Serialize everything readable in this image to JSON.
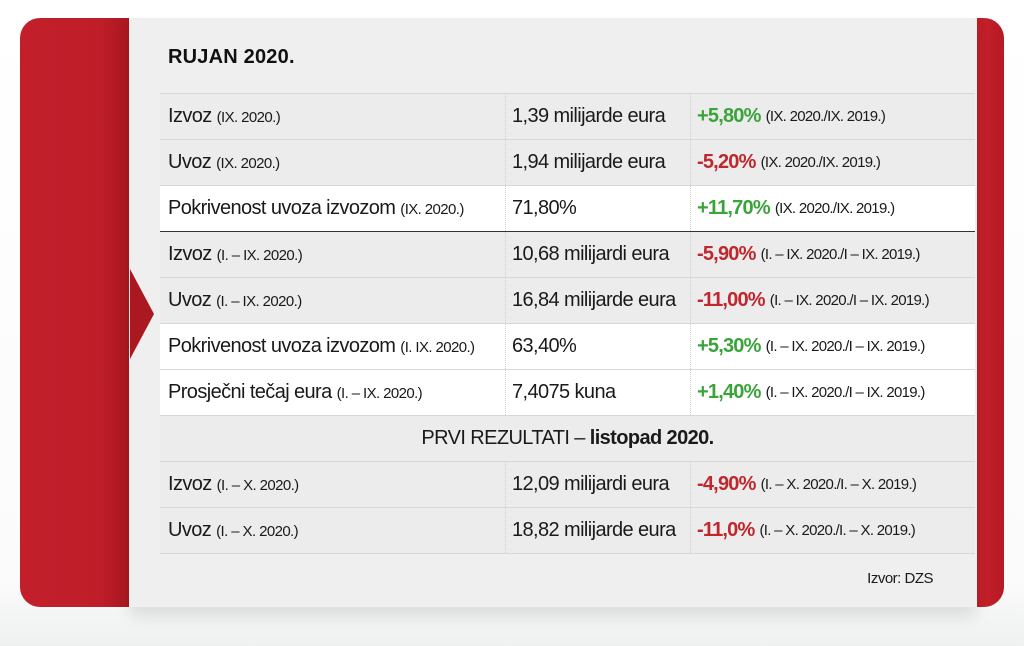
{
  "colors": {
    "accent_red": "#c21f2a",
    "positive": "#3aa43a",
    "negative": "#c0272d",
    "row_gray": "#ececec",
    "row_white": "#ffffff"
  },
  "title": "RUJAN 2020.",
  "rows": [
    {
      "label": "Izvoz",
      "label_period": "(IX. 2020.)",
      "value": "1,39 milijarde eura",
      "change": "+5,80%",
      "change_period": "(IX. 2020./IX. 2019.)",
      "direction": "up"
    },
    {
      "label": "Uvoz",
      "label_period": "(IX. 2020.)",
      "value": "1,94 milijarde eura",
      "change": "-5,20%",
      "change_period": "(IX. 2020./IX. 2019.)",
      "direction": "down"
    },
    {
      "label": "Pokrivenost uvoza izvozom",
      "label_period": "(IX. 2020.)",
      "value": "71,80%",
      "change": "+11,70%",
      "change_period": "(IX. 2020./IX. 2019.)",
      "direction": "up"
    },
    {
      "label": "Izvoz",
      "label_period": "(I. – IX. 2020.)",
      "value": "10,68 milijardi eura",
      "change": "-5,90%",
      "change_period": "(I. – IX. 2020./I – IX. 2019.)",
      "direction": "down"
    },
    {
      "label": "Uvoz",
      "label_period": "(I. – IX. 2020.)",
      "value": "16,84 milijarde eura",
      "change": "-11,00%",
      "change_period": "(I. – IX. 2020./I – IX. 2019.)",
      "direction": "down"
    },
    {
      "label": "Pokrivenost uvoza izvozom",
      "label_period": "(I. IX. 2020.)",
      "value": "63,40%",
      "change": "+5,30%",
      "change_period": "(I. – IX. 2020./I – IX. 2019.)",
      "direction": "up"
    },
    {
      "label": "Prosječni tečaj eura",
      "label_period": "(I. – IX. 2020.)",
      "value": "7,4075 kuna",
      "change": "+1,40%",
      "change_period": "(I. – IX. 2020./I – IX. 2019.)",
      "direction": "up"
    }
  ],
  "section": {
    "prefix": "PRVI REZULTATI – ",
    "bold": "listopad 2020."
  },
  "rows2": [
    {
      "label": "Izvoz",
      "label_period": "(I. – X. 2020.)",
      "value": "12,09 milijardi eura",
      "change": "-4,90%",
      "change_period": "(I. – X. 2020./I. – X. 2019.)",
      "direction": "down"
    },
    {
      "label": "Uvoz",
      "label_period": "(I. – X. 2020.)",
      "value": "18,82 milijarde eura",
      "change": "-11,0%",
      "change_period": "(I. – X. 2020./I. – X. 2019.)",
      "direction": "down"
    }
  ],
  "source": "Izvor: DZS"
}
